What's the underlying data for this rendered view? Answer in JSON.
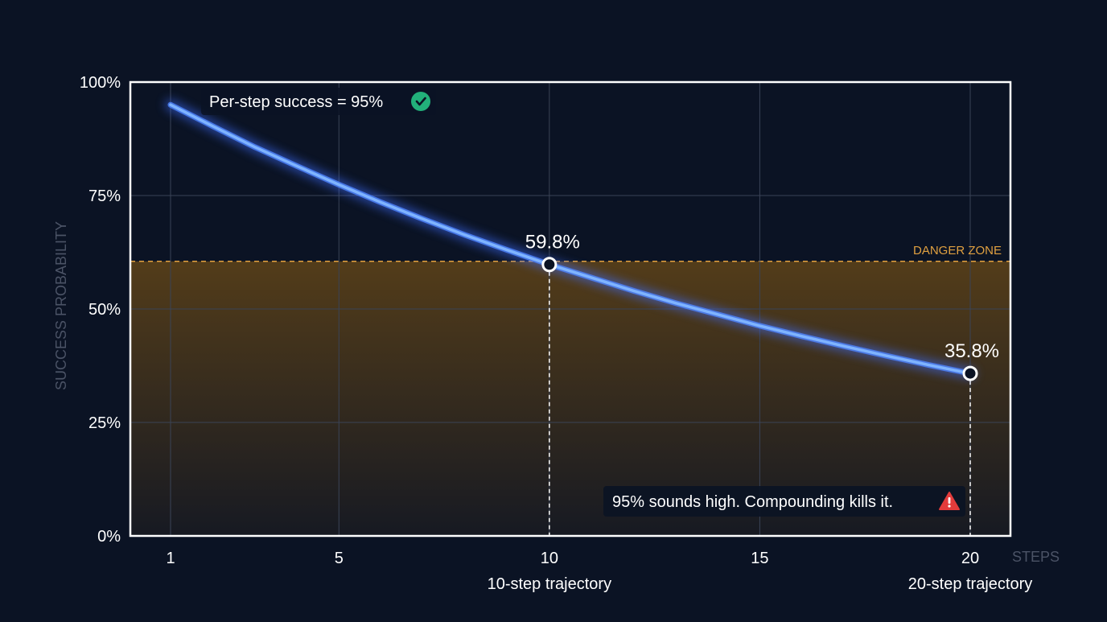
{
  "chart_data": {
    "type": "line",
    "xlabel": "STEPS",
    "ylabel": "SUCCESS PROBABILITY",
    "xlim": [
      1,
      20
    ],
    "ylim": [
      0,
      100
    ],
    "x_ticks": [
      1,
      5,
      10,
      15,
      20
    ],
    "x_tick_labels": [
      "1",
      "5",
      "10",
      "15",
      "20"
    ],
    "y_ticks": [
      0,
      25,
      50,
      75,
      100
    ],
    "y_tick_labels": [
      "0%",
      "25%",
      "50%",
      "75%",
      "100%"
    ],
    "grid": true,
    "series": [
      {
        "x": [
          1,
          2,
          3,
          4,
          5,
          6,
          7,
          8,
          9,
          10,
          11,
          12,
          13,
          14,
          15,
          16,
          17,
          18,
          19,
          20
        ],
        "values": [
          95.0,
          90.3,
          85.7,
          81.5,
          77.4,
          73.5,
          69.8,
          66.3,
          63.0,
          59.8,
          56.9,
          54.0,
          51.3,
          48.8,
          46.3,
          44.0,
          41.8,
          39.7,
          37.7,
          35.8
        ]
      }
    ],
    "highlighted_points": [
      {
        "x": 10,
        "y": 59.8,
        "label": "59.8%",
        "axis_label": "10-step trajectory"
      },
      {
        "x": 20,
        "y": 35.8,
        "label": "35.8%",
        "axis_label": "20-step trajectory"
      }
    ],
    "threshold": {
      "y": 60.5,
      "label": "DANGER ZONE"
    },
    "annotations": {
      "top": "Per-step success = 95%",
      "bottom": "95% sounds high. Compounding kills it."
    },
    "colors": {
      "background": "#0b1324",
      "line": "#7fb4ff",
      "glow": "#3d6dff",
      "danger": "#e0a040",
      "danger_fill": "#6b4a16",
      "check": "#22b07a",
      "warning": "#e23b3b",
      "grid": "#3a4356",
      "frame": "#ffffff",
      "muted_label": "#4b5366"
    }
  }
}
